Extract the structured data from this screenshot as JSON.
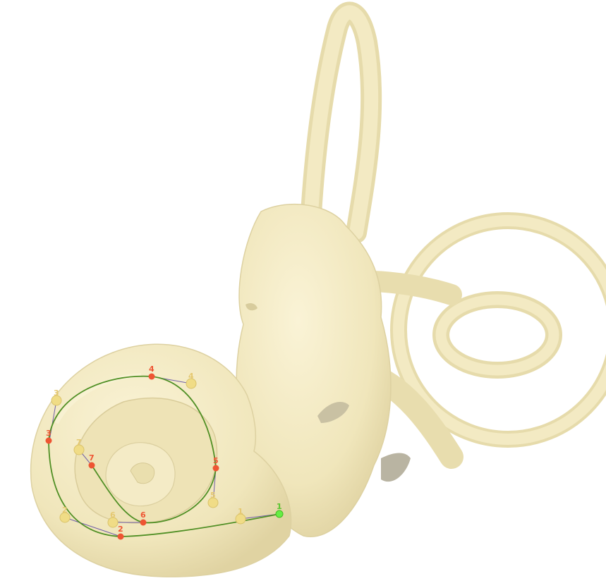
{
  "colors": {
    "background": "#ffffff",
    "bone": "#f1e7be",
    "bone_light": "#f7efcd",
    "bone_shade": "#ddd1a1",
    "shadow": "#b9b4a2",
    "curve": "#4f8f24",
    "connector": "#6f5ea8",
    "point_red": "#ee5533",
    "point_yellow": "#f0dc86",
    "point_green": "#66ee44"
  },
  "markers": {
    "red": [
      {
        "id": "r1",
        "label": "1"
      },
      {
        "id": "r2",
        "label": "2"
      },
      {
        "id": "r3",
        "label": "3"
      },
      {
        "id": "r4",
        "label": "4"
      },
      {
        "id": "r5",
        "label": "5"
      },
      {
        "id": "r6",
        "label": "6"
      },
      {
        "id": "r7",
        "label": "7"
      }
    ],
    "yellow": [
      {
        "id": "y1",
        "label": "1"
      },
      {
        "id": "y2",
        "label": "2"
      },
      {
        "id": "y3",
        "label": "3"
      },
      {
        "id": "y4",
        "label": "4"
      },
      {
        "id": "y5",
        "label": "5"
      },
      {
        "id": "y6",
        "label": "6"
      },
      {
        "id": "y7",
        "label": "7"
      }
    ],
    "green": {
      "id": "g1",
      "label": "1"
    }
  }
}
